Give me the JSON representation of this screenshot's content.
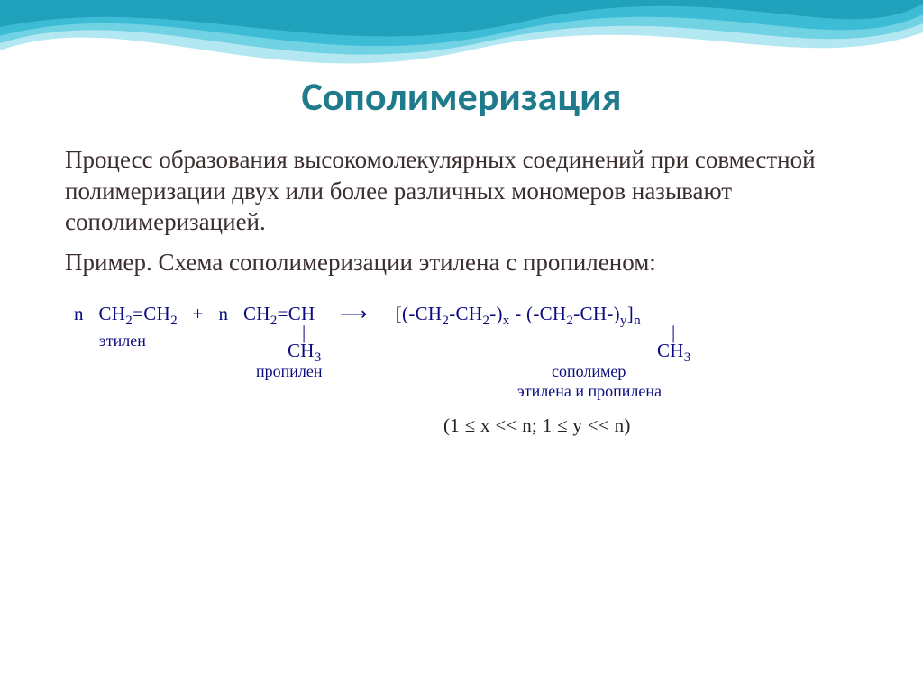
{
  "title": {
    "text": "Сополимеризация",
    "color": "#1f7a8c",
    "fontsize_pt": 44
  },
  "body": {
    "color": "#3b2e2e",
    "fontsize_pt": 27,
    "para1": "Процесс образования высокомолекулярных соединений при совместной полимеризации двух или более различных мономеров называют сополимеризацией.",
    "para2_prefix": " Пример. Схема сополимеризации этилена с пропиленом:"
  },
  "reaction": {
    "formula_color": "#0b0b80",
    "label_color": "#0b0b80",
    "constraint_color": "#222222",
    "fontsize_pt": 21,
    "label_fontsize_pt": 18,
    "reagent1": {
      "coef": "n",
      "formula_html": "CH<sub>2</sub>=CH<sub>2</sub>",
      "label": "этилен"
    },
    "plus": "+",
    "reagent2": {
      "coef": "n",
      "formula_top_html": "CH<sub>2</sub>=CH",
      "formula_bot_html": "CH<sub>3</sub>",
      "label": "пропилен"
    },
    "arrow": "⟶",
    "product": {
      "formula_top_html": "[(-CH<sub>2</sub>-CH<sub>2</sub>-)<sub>x</sub> - (-CH<sub>2</sub>-CH-)<sub>y</sub>]<sub>n</sub>",
      "formula_bot_html": "CH<sub>3</sub>",
      "label_line1": "сополимер",
      "label_line2": "этилена и пропилена"
    },
    "constraint": "(1 ≤ x << n;   1 ≤ y << n)"
  },
  "wave": {
    "colors": [
      "#a6e3ee",
      "#5fcde0",
      "#2bb6d0",
      "#1597b0"
    ]
  }
}
